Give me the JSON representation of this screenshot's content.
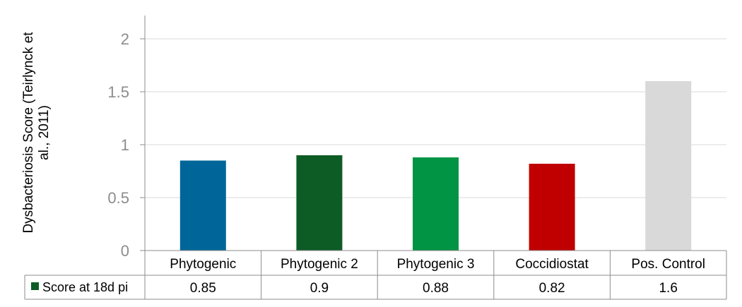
{
  "chart_data": {
    "type": "bar",
    "ylabel_lines": [
      "Dysbacteriosis Score (Teirlynck et",
      "al., 2011)"
    ],
    "categories": [
      "Phytogenic",
      "Phytogenic 2",
      "Phytogenic 3",
      "Coccidiostat",
      "Pos. Control"
    ],
    "series": [
      {
        "name": "Score at 18d pi",
        "values": [
          0.85,
          0.9,
          0.88,
          0.82,
          1.6
        ],
        "value_labels": [
          "0.85",
          "0.9",
          "0.88",
          "0.82",
          "1.6"
        ]
      }
    ],
    "bar_colors": [
      "#006699",
      "#0d5c25",
      "#009444",
      "#c00000",
      "#d9d9d9"
    ],
    "legend_color": "#0d5c25",
    "ylim": [
      0,
      2
    ],
    "yticks": [
      0,
      0.5,
      1,
      1.5,
      2
    ],
    "ytick_labels": [
      "0",
      "0.5",
      "1",
      "1.5",
      "2"
    ],
    "grid": true,
    "data_table": true
  }
}
